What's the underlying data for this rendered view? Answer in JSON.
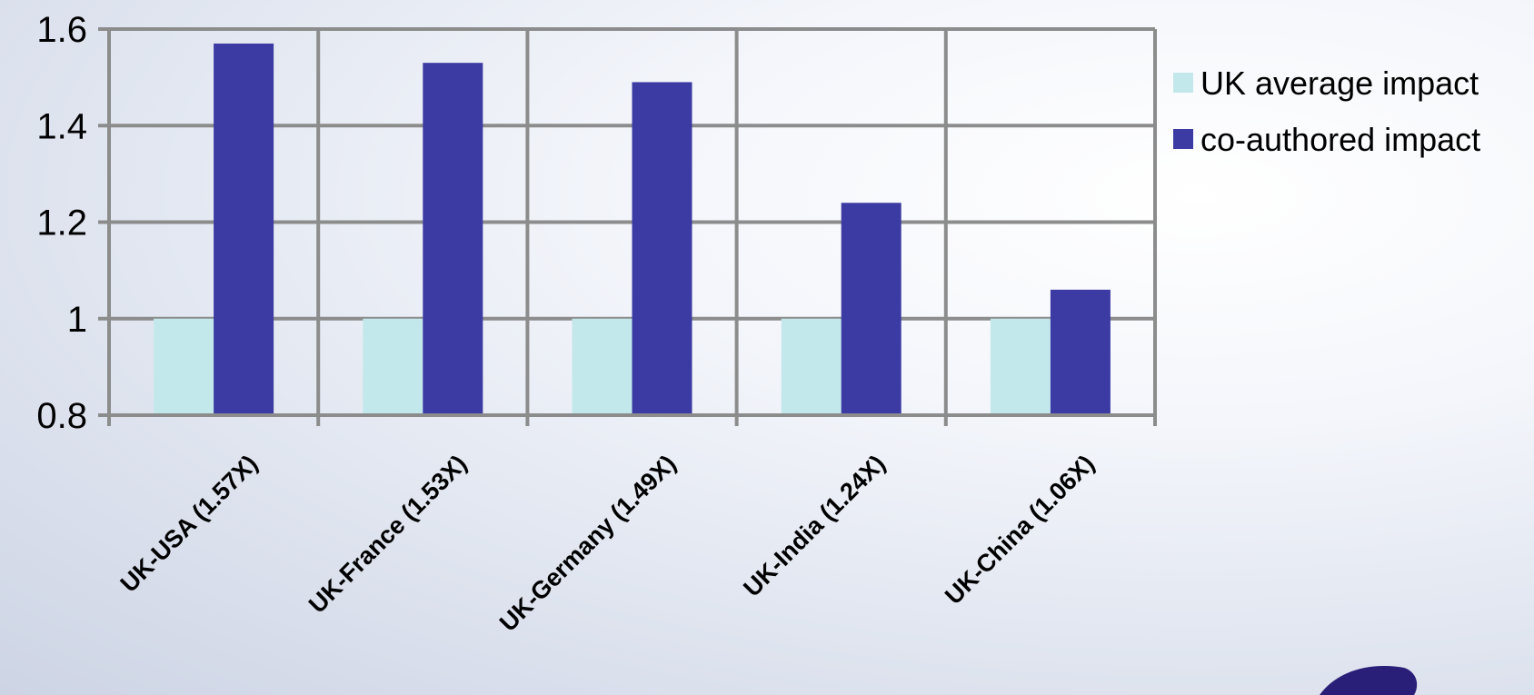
{
  "chart_data": {
    "type": "bar",
    "categories": [
      "UK-USA (1.57X)",
      "UK-France (1.53X)",
      "UK-Germany (1.49X)",
      "UK-India (1.24X)",
      "UK-China (1.06X)"
    ],
    "series": [
      {
        "name": "UK average impact",
        "color": "#c3e8ec",
        "values": [
          1,
          1,
          1,
          1,
          1
        ]
      },
      {
        "name": "co-authored impact",
        "color": "#3b3ba3",
        "values": [
          1.57,
          1.53,
          1.49,
          1.24,
          1.06
        ]
      }
    ],
    "yticks": [
      "0.8",
      "1",
      "1.2",
      "1.4",
      "1.6"
    ],
    "ylim": [
      0.8,
      1.6
    ],
    "grid": true,
    "legend": "right",
    "title": "",
    "xlabel": "",
    "ylabel": ""
  }
}
